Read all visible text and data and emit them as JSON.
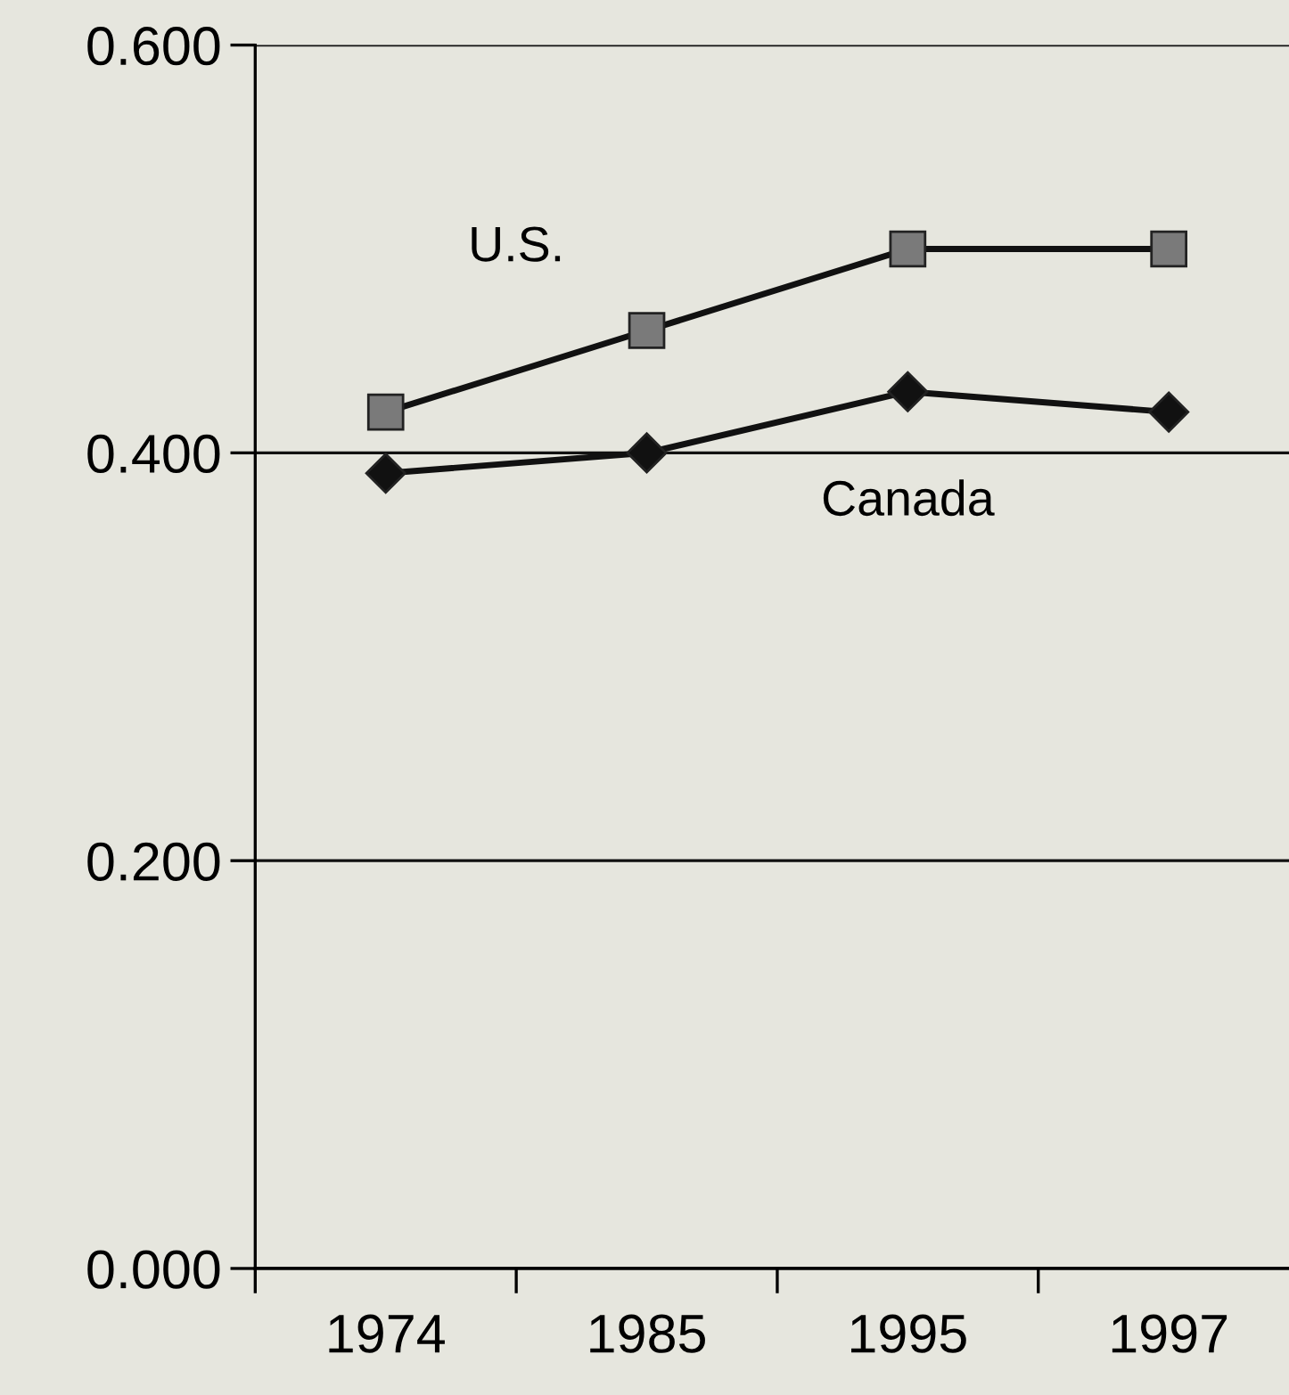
{
  "chart_data": {
    "type": "line",
    "categories": [
      "1974",
      "1985",
      "1995",
      "1997"
    ],
    "series": [
      {
        "name": "U.S.",
        "color": "#7a7a7a",
        "marker": "square",
        "values": [
          0.42,
          0.46,
          0.5,
          0.5
        ]
      },
      {
        "name": "Canada",
        "color": "#111111",
        "marker": "diamond",
        "values": [
          0.39,
          0.4,
          0.43,
          0.42
        ]
      }
    ],
    "ylim": [
      0,
      0.6
    ],
    "yticks": [
      {
        "value": 0,
        "label": "0.000"
      },
      {
        "value": 0.2,
        "label": "0.200"
      },
      {
        "value": 0.4,
        "label": "0.400"
      },
      {
        "value": 0.6,
        "label": "0.600"
      }
    ],
    "grid": "y",
    "line_style": "solid",
    "legend": false
  }
}
